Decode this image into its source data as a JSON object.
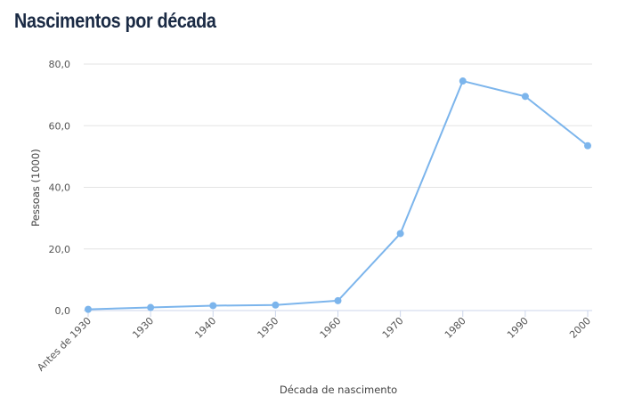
{
  "page": {
    "title": "Nascimentos por década"
  },
  "chart_data": {
    "type": "line",
    "title": "Nascimentos por década",
    "xlabel": "Década de nascimento",
    "ylabel": "Pessoas (1000)",
    "categories": [
      "Antes de 1930",
      "1930",
      "1940",
      "1950",
      "1960",
      "1970",
      "1980",
      "1990",
      "2000"
    ],
    "series": [
      {
        "values": [
          0.4,
          1.0,
          1.6,
          1.8,
          3.2,
          25.0,
          74.5,
          69.5,
          53.5
        ]
      }
    ],
    "ylim": [
      0,
      80
    ],
    "yticks": [
      0,
      20,
      40,
      60,
      80
    ],
    "ytick_labels": [
      "0,0",
      "20,0",
      "40,0",
      "60,0",
      "80,0"
    ],
    "grid": true,
    "legend": "none",
    "color": "#7cb5ec"
  }
}
